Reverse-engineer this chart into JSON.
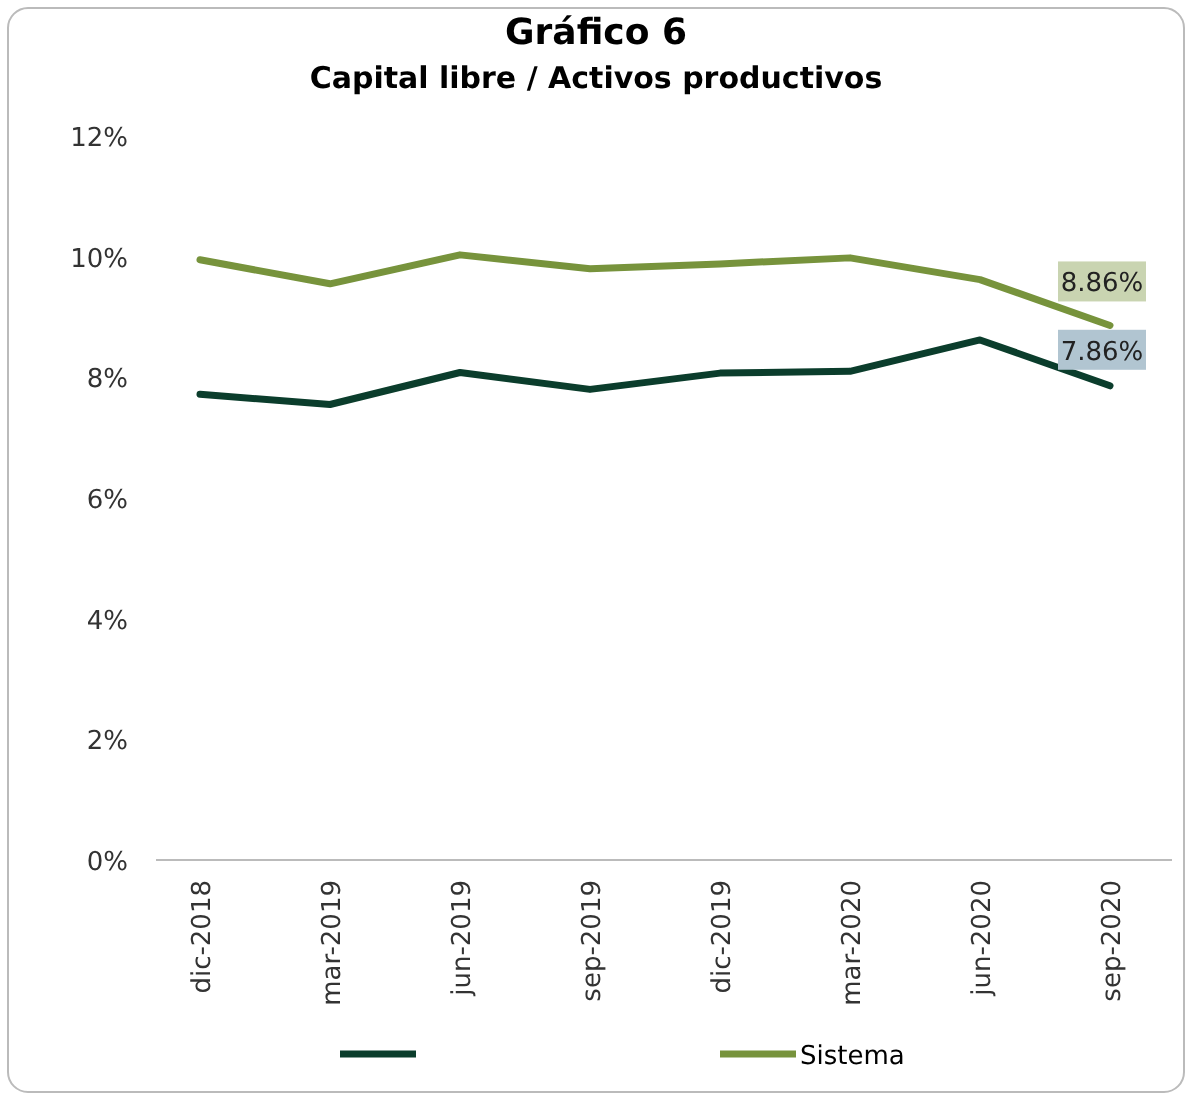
{
  "chart_data": {
    "type": "line",
    "title": "Gráfico 6",
    "subtitle": "Capital libre / Activos productivos",
    "categories": [
      "dic-2018",
      "mar-2019",
      "jun-2019",
      "sep-2019",
      "dic-2019",
      "mar-2020",
      "jun-2020",
      "sep-2020"
    ],
    "series": [
      {
        "color": "#0b3d2c",
        "values": [
          7.72,
          7.55,
          8.08,
          7.8,
          8.07,
          8.1,
          8.62,
          7.86
        ],
        "value_labels": [
          null,
          null,
          null,
          null,
          null,
          null,
          null,
          "7.86%"
        ]
      },
      {
        "name": "Sistema",
        "color": "#77933c",
        "values": [
          9.95,
          9.55,
          10.03,
          9.8,
          9.88,
          9.98,
          9.62,
          8.86
        ],
        "value_labels": [
          null,
          null,
          null,
          null,
          null,
          null,
          null,
          "8.86%"
        ]
      }
    ],
    "ylim": [
      0,
      12
    ],
    "yticks": [
      {
        "value": 0,
        "label": "0%"
      },
      {
        "value": 2,
        "label": "2%"
      },
      {
        "value": 4,
        "label": "4%"
      },
      {
        "value": 6,
        "label": "6%"
      },
      {
        "value": 8,
        "label": "8%"
      },
      {
        "value": 10,
        "label": "10%"
      },
      {
        "value": 12,
        "label": "12%"
      }
    ],
    "legend": "bottom",
    "marker": "none",
    "line_style": "solid"
  }
}
